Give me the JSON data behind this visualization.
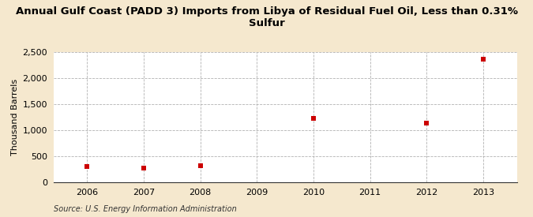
{
  "title": "Annual Gulf Coast (PADD 3) Imports from Libya of Residual Fuel Oil, Less than 0.31% Sulfur",
  "ylabel": "Thousand Barrels",
  "source": "Source: U.S. Energy Information Administration",
  "x": [
    2006,
    2007,
    2008,
    2010,
    2012,
    2013
  ],
  "y": [
    300,
    278,
    322,
    1229,
    1139,
    2369
  ],
  "xlim": [
    2005.4,
    2013.6
  ],
  "ylim": [
    0,
    2500
  ],
  "yticks": [
    0,
    500,
    1000,
    1500,
    2000,
    2500
  ],
  "ytick_labels": [
    "0",
    "500",
    "1,000",
    "1,500",
    "2,000",
    "2,500"
  ],
  "xticks": [
    2006,
    2007,
    2008,
    2009,
    2010,
    2011,
    2012,
    2013
  ],
  "marker_color": "#cc0000",
  "marker_size": 5,
  "background_color": "#f5e8ce",
  "plot_bg_color": "#ffffff",
  "grid_color": "#aaaaaa",
  "title_fontsize": 9.5,
  "label_fontsize": 8,
  "tick_fontsize": 8,
  "source_fontsize": 7
}
